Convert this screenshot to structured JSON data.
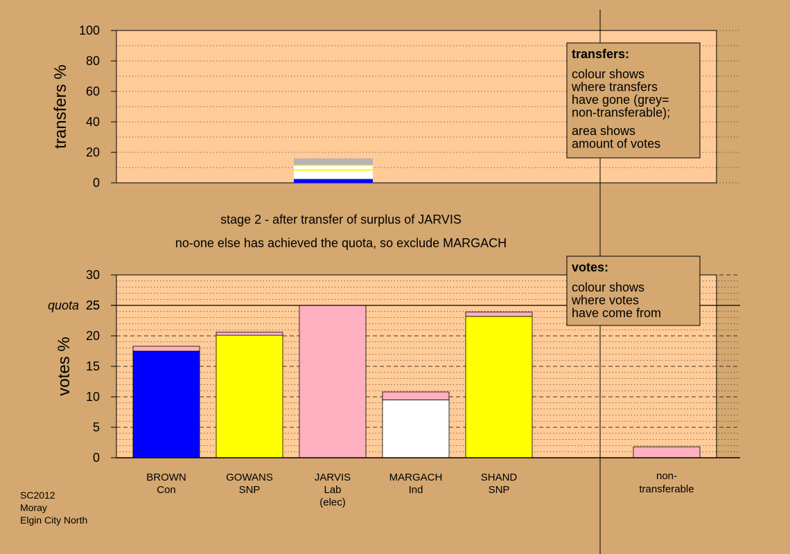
{
  "colors": {
    "background": "#d4a870",
    "panel": "#ffcc99",
    "Con": "#0000ff",
    "SNP": "#ffff00",
    "Lab": "#ffb0c0",
    "Ind": "#ffffff",
    "nontransferable": "#b4b4b4",
    "legend_box": "#d4a870"
  },
  "stage": {
    "line1": "stage 2 - after transfer of surplus of JARVIS",
    "line2": "no-one else has achieved the quota, so exclude MARGACH"
  },
  "footer": {
    "lines": [
      "SC2012",
      "Moray",
      "Elgin City North"
    ]
  },
  "transfers_box": {
    "title": "transfers:",
    "para1": [
      "colour shows",
      "where transfers",
      "have gone (grey=",
      "non-transferable);"
    ],
    "para2": [
      "area shows",
      "amount of votes"
    ]
  },
  "votes_box": {
    "title": "votes:",
    "para1": [
      "colour shows",
      "where votes",
      "have come from"
    ]
  },
  "chart_data": [
    {
      "type": "bar",
      "title": "",
      "ylabel": "transfers %",
      "ylim": [
        0,
        100
      ],
      "yticks": [
        0,
        20,
        40,
        60,
        80,
        100
      ],
      "grid": true,
      "bars": [
        {
          "source": "JARVIS",
          "segments": [
            {
              "to": "BROWN",
              "party": "Con",
              "value": 2.5
            },
            {
              "to": "MARGACH",
              "party": "Ind",
              "value": 5.5
            },
            {
              "to": "GOWANS",
              "party": "SNP",
              "value": 1.0
            },
            {
              "to": "MARGACH",
              "party": "Ind",
              "value": 2.0
            },
            {
              "to": "SHAND",
              "party": "SNP",
              "value": 0.8
            },
            {
              "to": "non-transferable",
              "party": "nontransferable",
              "value": 4.2
            }
          ]
        }
      ]
    },
    {
      "type": "bar",
      "title": "",
      "ylabel": "votes %",
      "ylim": [
        0,
        30
      ],
      "yticks": [
        0,
        5,
        10,
        15,
        20,
        25,
        30
      ],
      "quota": {
        "label": "quota",
        "value": 25
      },
      "grid": true,
      "candidates": [
        {
          "name": "BROWN",
          "party": "Con",
          "extra": "",
          "segments": [
            {
              "party": "Con",
              "value": 17.5
            },
            {
              "party": "Lab",
              "value": 0.8
            }
          ]
        },
        {
          "name": "GOWANS",
          "party": "SNP",
          "extra": "",
          "segments": [
            {
              "party": "SNP",
              "value": 20.1
            },
            {
              "party": "Lab",
              "value": 0.5
            }
          ]
        },
        {
          "name": "JARVIS",
          "party": "Lab",
          "extra": "(elec)",
          "segments": [
            {
              "party": "Lab",
              "value": 25.0
            }
          ]
        },
        {
          "name": "MARGACH",
          "party": "Ind",
          "extra": "",
          "segments": [
            {
              "party": "Ind",
              "value": 9.5
            },
            {
              "party": "Lab",
              "value": 1.3
            }
          ]
        },
        {
          "name": "SHAND",
          "party": "SNP",
          "extra": "",
          "segments": [
            {
              "party": "SNP",
              "value": 23.2
            },
            {
              "party": "Lab",
              "value": 0.7
            }
          ]
        }
      ],
      "nontransferable": {
        "label1": "non-",
        "label2": "transferable",
        "segments": [
          {
            "party": "Lab",
            "value": 1.8
          }
        ]
      }
    }
  ]
}
